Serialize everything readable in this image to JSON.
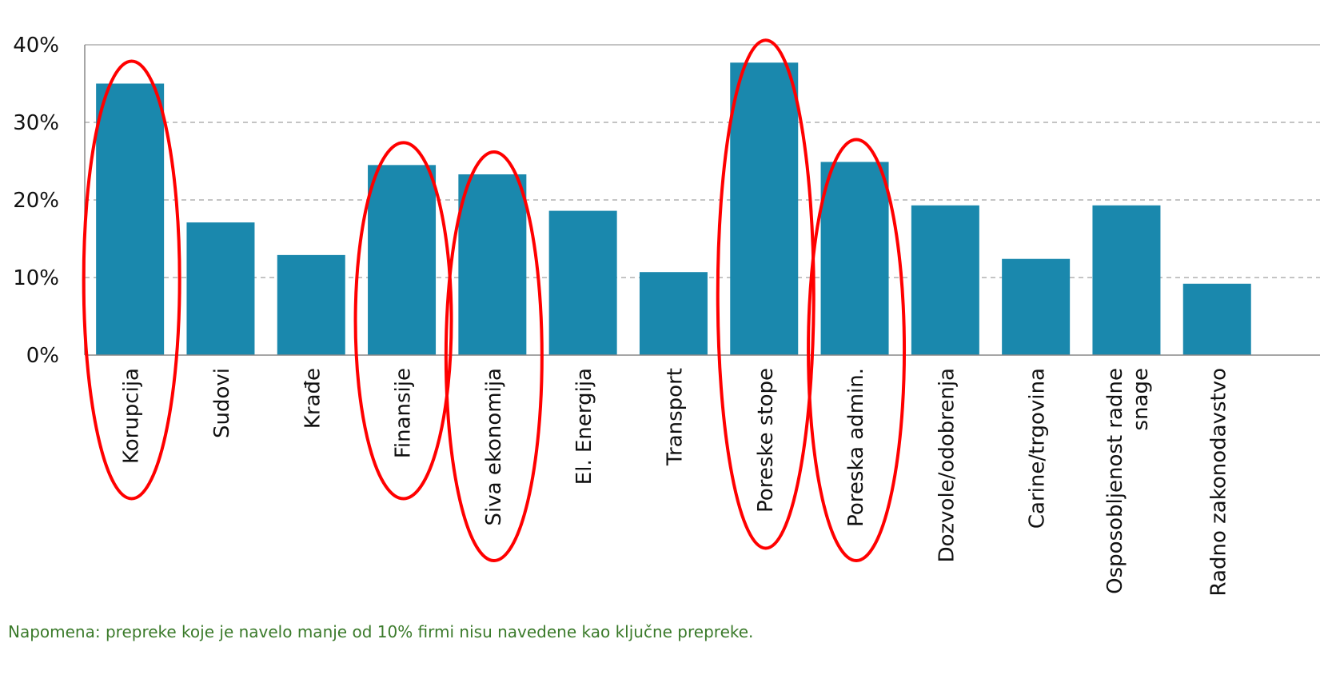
{
  "chart_data": {
    "type": "bar",
    "categories": [
      [
        "Korupcija"
      ],
      [
        "Sudovi"
      ],
      [
        "Krađe"
      ],
      [
        "Finansije"
      ],
      [
        "Siva ekonomija"
      ],
      [
        "El. Energija"
      ],
      [
        "Transport"
      ],
      [
        "Poreske stope"
      ],
      [
        "Poreska admin."
      ],
      [
        "Dozvole/odobrenja"
      ],
      [
        "Carine/trgovina"
      ],
      [
        "Osposobljenost radne",
        "snage"
      ],
      [
        "Radno zakonodavstvo"
      ]
    ],
    "values": [
      35.0,
      17.1,
      12.9,
      24.5,
      23.3,
      18.6,
      10.7,
      37.7,
      24.9,
      19.3,
      12.4,
      19.3,
      9.2
    ],
    "highlighted": [
      true,
      false,
      false,
      true,
      true,
      false,
      false,
      true,
      true,
      false,
      false,
      false,
      false
    ],
    "ylim": [
      0,
      40
    ],
    "yticks": [
      0,
      10,
      20,
      30,
      40
    ],
    "ytick_labels": [
      "0%",
      "10%",
      "20%",
      "30%",
      "40%"
    ],
    "grid": true,
    "bar_color": "#1a88ad",
    "highlight_color": "#ff0000",
    "grid_color": "#b0b0b0"
  },
  "note": "Napomena: prepreke koje je navelo manje od 10% firmi nisu navedene kao ključne prepreke."
}
